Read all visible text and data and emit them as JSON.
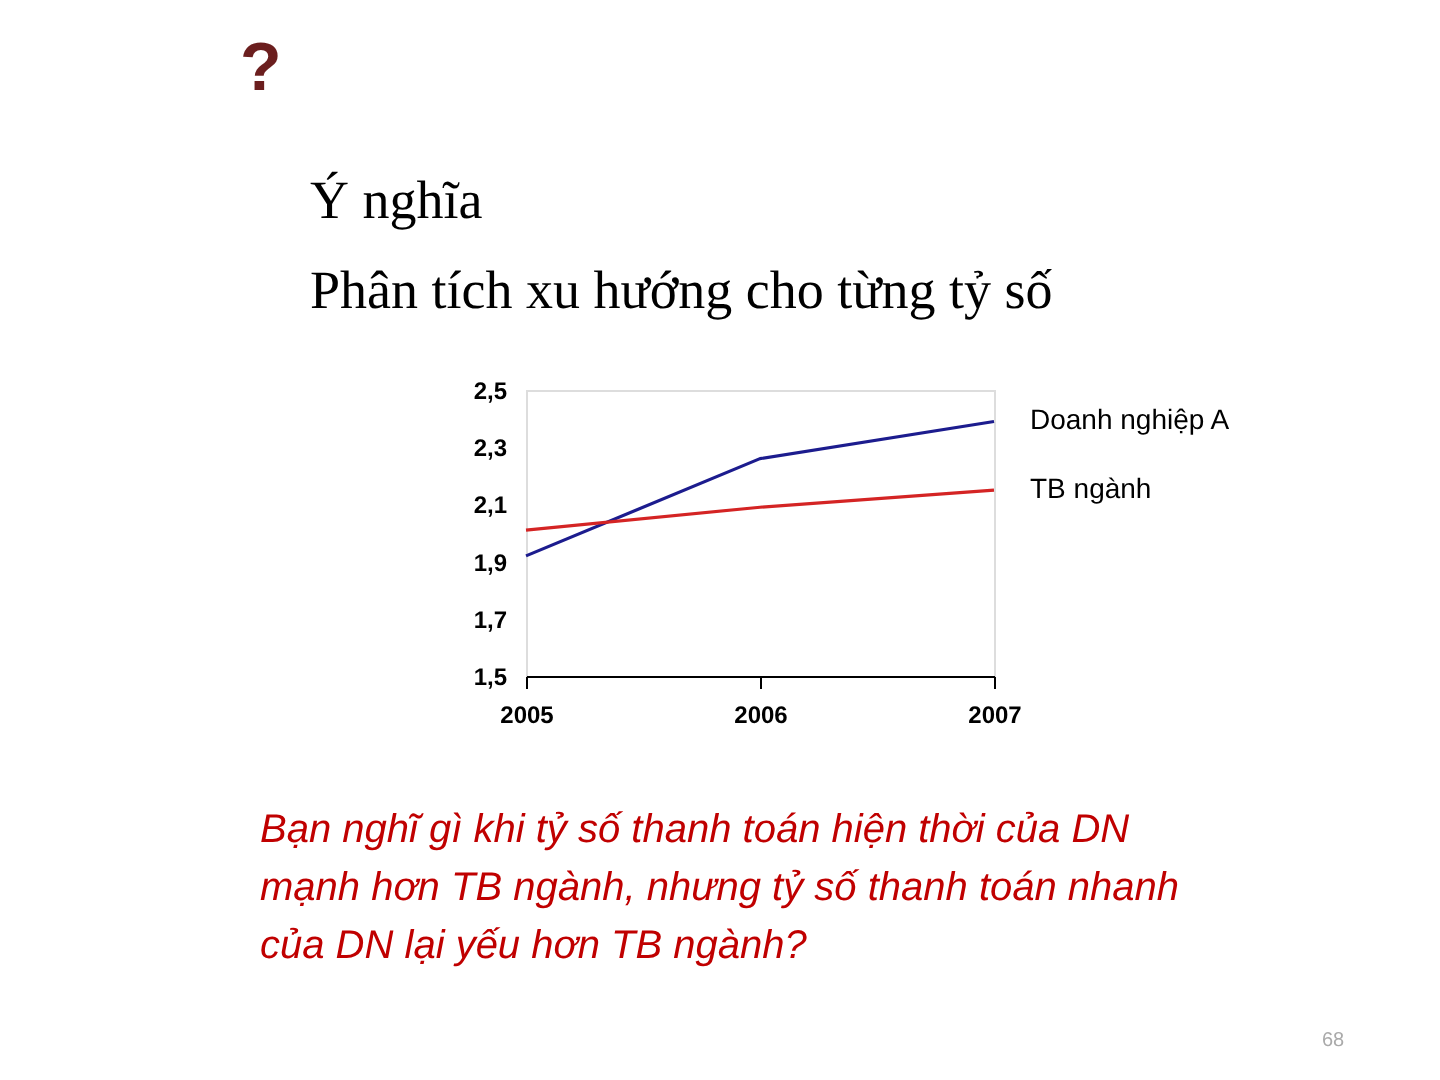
{
  "chart_data": {
    "type": "line",
    "title": "?",
    "annotations": [
      "Ý nghĩa",
      "Phân tích xu hướng cho từng tỷ số",
      "Bạn nghĩ gì khi tỷ số thanh toán hiện thời của DN mạnh hơn TB ngành, nhưng tỷ số thanh toán nhanh của DN lại yếu hơn TB ngành?",
      "68"
    ],
    "x": [
      2005,
      2006,
      2007
    ],
    "series": [
      {
        "name": "Doanh nghiệp A",
        "color": "#1c1c8e",
        "values": [
          1.92,
          2.26,
          2.39
        ]
      },
      {
        "name": "TB ngành",
        "color": "#d42424",
        "values": [
          2.01,
          2.09,
          2.15
        ]
      }
    ],
    "xlim": [
      2005,
      2007
    ],
    "xticks": [
      2005,
      2006,
      2007
    ],
    "ylim": [
      1.5,
      2.5
    ],
    "yticks": [
      {
        "value": 1.5,
        "label": "1,5"
      },
      {
        "value": 1.7,
        "label": "1,7"
      },
      {
        "value": 1.9,
        "label": "1,9"
      },
      {
        "value": 2.1,
        "label": "2,1"
      },
      {
        "value": 2.3,
        "label": "2,3"
      },
      {
        "value": 2.5,
        "label": "2,5"
      }
    ],
    "grid": false,
    "legend": false,
    "marker": "none",
    "line_style": "solid"
  }
}
